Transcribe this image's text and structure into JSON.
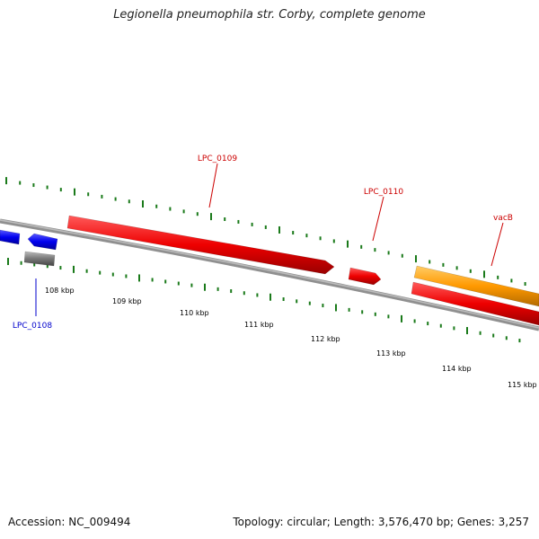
{
  "title": "Legionella pneumophila str. Corby, complete genome",
  "footer": {
    "accession": "Accession: NC_009494",
    "summary": "Topology: circular; Length: 3,576,470 bp; Genes: 3,257"
  },
  "colors": {
    "backbone": "#888888",
    "tick": "#1a7a1a",
    "forward_gene": "#ff0000",
    "reverse_gene": "#0000ff",
    "pseudo_gene": "#777777",
    "other_gene": "#ff9900",
    "label_red": "#cc0000",
    "label_blue": "#0000cc"
  },
  "scale": {
    "labels": [
      "108 kbp",
      "109 kbp",
      "110 kbp",
      "111 kbp",
      "112 kbp",
      "113 kbp",
      "114 kbp",
      "115 kbp"
    ]
  },
  "genes": [
    {
      "name": "LPC_0108"
    },
    {
      "name": "LPC_0109"
    },
    {
      "name": "LPC_0110"
    },
    {
      "name": "vacB"
    }
  ]
}
